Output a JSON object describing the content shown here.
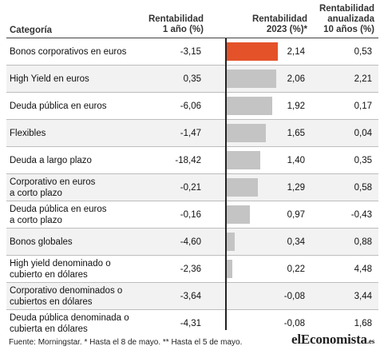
{
  "headers": {
    "categoria": "Categoría",
    "r1_line1": "Rentabilidad",
    "r1_line2": "1 año (%)",
    "r23_line1": "Rentabilidad",
    "r23_line2": "2023 (%)*",
    "r10_line1": "Rentabilidad",
    "r10_line2": "anualizada",
    "r10_line3": "10 años (%)"
  },
  "rows": [
    {
      "cat1": "Bonos corporativos en euros",
      "cat2": "",
      "r1": "-3,15",
      "r23": "2,14",
      "v23": 2.14,
      "r10": "0,53",
      "highlight": true
    },
    {
      "cat1": "High Yield en euros",
      "cat2": "",
      "r1": "0,35",
      "r23": "2,06",
      "v23": 2.06,
      "r10": "2,21",
      "highlight": false
    },
    {
      "cat1": "Deuda pública en euros",
      "cat2": "",
      "r1": "-6,06",
      "r23": "1,92",
      "v23": 1.92,
      "r10": "0,17",
      "highlight": false
    },
    {
      "cat1": "Flexibles",
      "cat2": "",
      "r1": "-1,47",
      "r23": "1,65",
      "v23": 1.65,
      "r10": "0,04",
      "highlight": false
    },
    {
      "cat1": "Deuda a largo plazo",
      "cat2": "",
      "r1": "-18,42",
      "r23": "1,40",
      "v23": 1.4,
      "r10": "0,35",
      "highlight": false
    },
    {
      "cat1": "Corporativo en euros",
      "cat2": "a corto plazo",
      "r1": "-0,21",
      "r23": "1,29",
      "v23": 1.29,
      "r10": "0,58",
      "highlight": false
    },
    {
      "cat1": "Deuda pública en euros",
      "cat2": "a corto plazo",
      "r1": "-0,16",
      "r23": "0,97",
      "v23": 0.97,
      "r10": "-0,43",
      "highlight": false
    },
    {
      "cat1": "Bonos globales",
      "cat2": "",
      "r1": "-4,60",
      "r23": "0,34",
      "v23": 0.34,
      "r10": "0,88",
      "highlight": false
    },
    {
      "cat1": "High yield denominado o",
      "cat2": "cubierto en dólares",
      "r1": "-2,36",
      "r23": "0,22",
      "v23": 0.22,
      "r10": "4,48",
      "highlight": false
    },
    {
      "cat1": "Corporativo denominados o",
      "cat2": "cubiertos en dólares",
      "r1": "-3,64",
      "r23": "-0,08",
      "v23": -0.08,
      "r10": "3,44",
      "highlight": false
    },
    {
      "cat1": "Deuda pública denominada o",
      "cat2": "cubierta en dólares",
      "r1": "-4,31",
      "r23": "-0,08",
      "v23": -0.08,
      "r10": "1,68",
      "highlight": false
    }
  ],
  "footer": "Fuente: Morningstar. * Hasta el 8 de mayo. ** Hasta el 5 de mayo.",
  "logo": {
    "main": "elEconomista",
    "suffix": ".es"
  },
  "colors": {
    "highlight": "#e4522a",
    "bar": "#c4c4c4"
  }
}
